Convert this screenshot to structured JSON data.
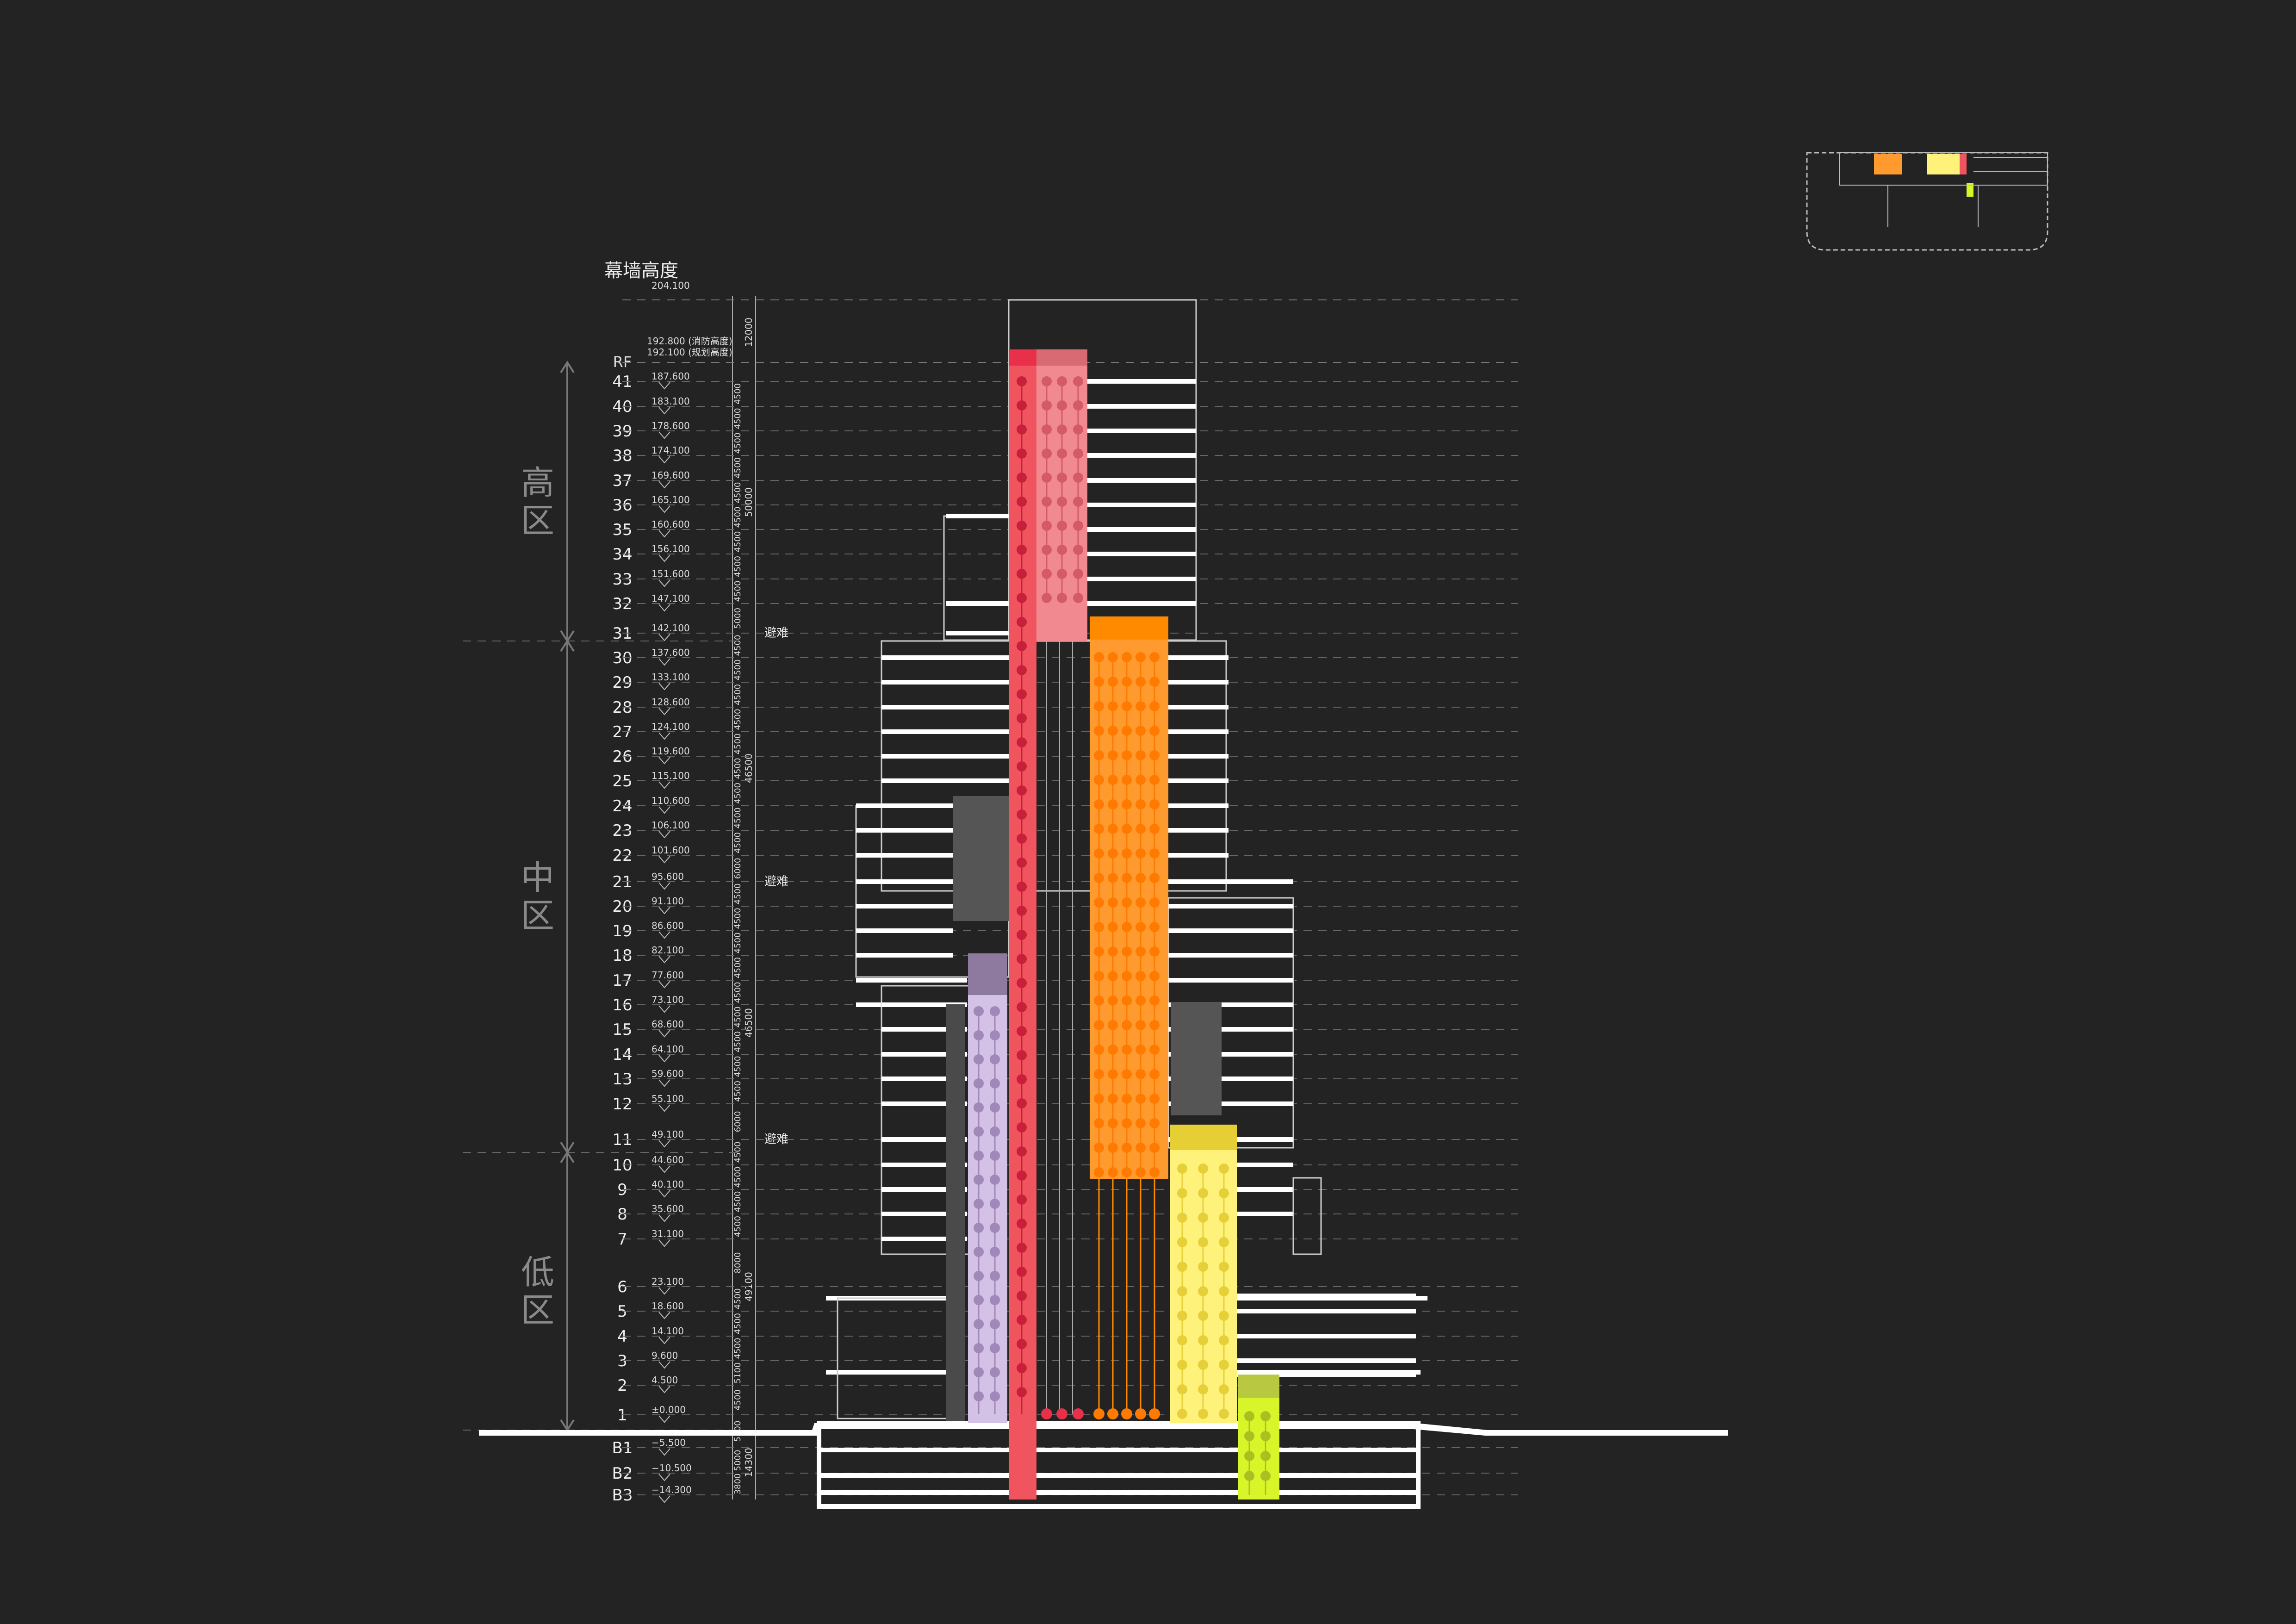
{
  "title": "幕墙高度",
  "top_elevation": "204.100",
  "roof": {
    "label": "RF",
    "elev_fire": "192.800",
    "note_fire": "(消防高度)",
    "elev_plan": "192.100",
    "note_plan": "(规划高度)",
    "height": "12000"
  },
  "zones": [
    {
      "label": "高区",
      "from": "31",
      "to": "RF",
      "height": "50000"
    },
    {
      "label": "中区",
      "from": "11",
      "to": "31",
      "height": "46500 / 46500"
    },
    {
      "label": "低区",
      "from": "1",
      "to": "11",
      "height": "49100"
    }
  ],
  "refuge_label": "避难",
  "refuge_floors": [
    "31",
    "21",
    "11"
  ],
  "basement_total": "14300",
  "floors": [
    {
      "name": "41",
      "elev": "187.600",
      "h": "4500"
    },
    {
      "name": "40",
      "elev": "183.100",
      "h": "4500"
    },
    {
      "name": "39",
      "elev": "178.600",
      "h": "4500"
    },
    {
      "name": "38",
      "elev": "174.100",
      "h": "4500"
    },
    {
      "name": "37",
      "elev": "169.600",
      "h": "4500"
    },
    {
      "name": "36",
      "elev": "165.100",
      "h": "4500"
    },
    {
      "name": "35",
      "elev": "160.600",
      "h": "4500"
    },
    {
      "name": "34",
      "elev": "156.100",
      "h": "4500"
    },
    {
      "name": "33",
      "elev": "151.600",
      "h": "4500"
    },
    {
      "name": "32",
      "elev": "147.100",
      "h": "5000"
    },
    {
      "name": "31",
      "elev": "142.100",
      "h": "4500"
    },
    {
      "name": "30",
      "elev": "137.600",
      "h": "4500"
    },
    {
      "name": "29",
      "elev": "133.100",
      "h": "4500"
    },
    {
      "name": "28",
      "elev": "128.600",
      "h": "4500"
    },
    {
      "name": "27",
      "elev": "124.100",
      "h": "4500"
    },
    {
      "name": "26",
      "elev": "119.600",
      "h": "4500"
    },
    {
      "name": "25",
      "elev": "115.100",
      "h": "4500"
    },
    {
      "name": "24",
      "elev": "110.600",
      "h": "4500"
    },
    {
      "name": "23",
      "elev": "106.100",
      "h": "4500"
    },
    {
      "name": "22",
      "elev": "101.600",
      "h": "6000"
    },
    {
      "name": "21",
      "elev": "95.600",
      "h": "4500"
    },
    {
      "name": "20",
      "elev": "91.100",
      "h": "4500"
    },
    {
      "name": "19",
      "elev": "86.600",
      "h": "4500"
    },
    {
      "name": "18",
      "elev": "82.100",
      "h": "4500"
    },
    {
      "name": "17",
      "elev": "77.600",
      "h": "4500"
    },
    {
      "name": "16",
      "elev": "73.100",
      "h": "4500"
    },
    {
      "name": "15",
      "elev": "68.600",
      "h": "4500"
    },
    {
      "name": "14",
      "elev": "64.100",
      "h": "4500"
    },
    {
      "name": "13",
      "elev": "59.600",
      "h": "4500"
    },
    {
      "name": "12",
      "elev": "55.100",
      "h": "6000"
    },
    {
      "name": "11",
      "elev": "49.100",
      "h": "4500"
    },
    {
      "name": "10",
      "elev": "44.600",
      "h": "4500"
    },
    {
      "name": "9",
      "elev": "40.100",
      "h": "4500"
    },
    {
      "name": "8",
      "elev": "35.600",
      "h": "4500"
    },
    {
      "name": "7",
      "elev": "31.100",
      "h": "8000"
    },
    {
      "name": "6",
      "elev": "23.100",
      "h": "4500"
    },
    {
      "name": "5",
      "elev": "18.600",
      "h": "4500"
    },
    {
      "name": "4",
      "elev": "14.100",
      "h": "4500"
    },
    {
      "name": "3",
      "elev": "9.600",
      "h": "5100"
    },
    {
      "name": "2",
      "elev": "4.500",
      "h": "4500"
    },
    {
      "name": "1",
      "elev": "±0.000",
      "h": "5500"
    },
    {
      "name": "B1",
      "elev": "−5.500",
      "h": "5000"
    },
    {
      "name": "B2",
      "elev": "−10.500",
      "h": "3800"
    },
    {
      "name": "B3",
      "elev": "−14.300",
      "h": ""
    }
  ],
  "colors": {
    "background": "#232323",
    "red_shaft": "#f0555f",
    "pink_shaft": "#f08a90",
    "orange_shaft": "#ff9a2e",
    "yellow_shaft": "#fff27a",
    "lavender_shaft": "#d4c1e6",
    "lime_shaft": "#d8f52a"
  }
}
